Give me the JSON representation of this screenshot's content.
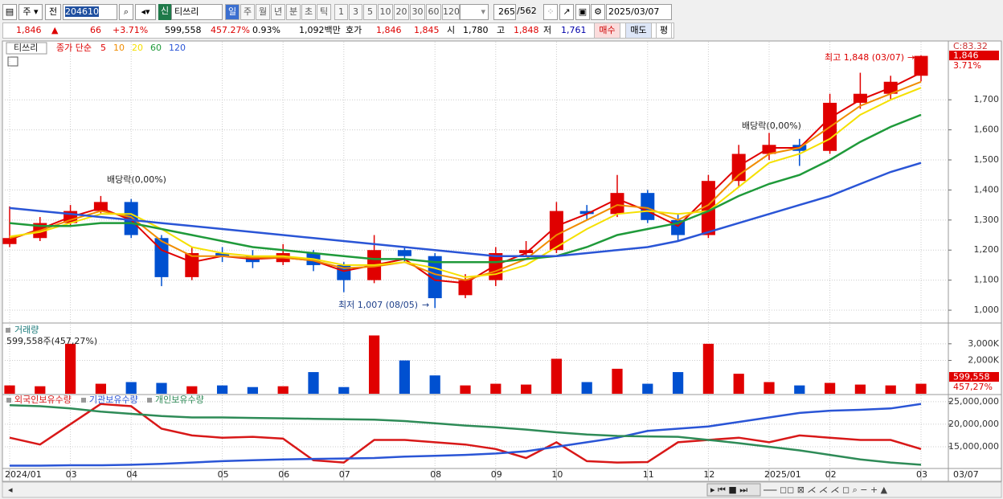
{
  "toolbar": {
    "period": "주",
    "prev": "전",
    "code": "204610",
    "credit": "신",
    "name": "티쓰리",
    "intervals": [
      "일",
      "주",
      "월",
      "년",
      "분",
      "초",
      "틱"
    ],
    "counts": [
      "1",
      "3",
      "5",
      "10",
      "20",
      "30",
      "60",
      "120"
    ],
    "bars": "265",
    "total": "/562",
    "date": "2025/03/07"
  },
  "quote": {
    "price": "1,846",
    "arrow": "▲",
    "change": "66",
    "rate": "+3.71%",
    "volume": "599,558",
    "volume_rate": "457.27%",
    "turnover": "0.93%",
    "amount": "1,092백만",
    "ask_label": "호가",
    "ask": "1,846",
    "bid": "1,845",
    "open_label": "시",
    "open": "1,780",
    "high_label": "고",
    "high": "1,848",
    "low_label": "저",
    "low": "1,761",
    "buy": "매수",
    "sell": "매도",
    "avg": "평"
  },
  "chart_data": [
    {
      "type": "candlestick",
      "legend_title": "종가 단순",
      "categories": [
        "2024/01",
        null,
        "03",
        null,
        "04",
        null,
        null,
        "05",
        null,
        "06",
        null,
        "07",
        null,
        null,
        "08",
        null,
        "09",
        null,
        "10",
        null,
        null,
        "11",
        null,
        "12",
        null,
        "2025/01",
        null,
        "02",
        null,
        null,
        "03"
      ],
      "open": [
        1220,
        1240,
        1290,
        1330,
        1360,
        1240,
        1110,
        1190,
        1180,
        1160,
        1190,
        1150,
        1100,
        1200,
        1180,
        1050,
        1100,
        1190,
        1200,
        1330,
        1320,
        1390,
        1300,
        1250,
        1430,
        1520,
        1550,
        1530,
        1690,
        1720,
        1780
      ],
      "high": [
        1345,
        1310,
        1350,
        1380,
        1370,
        1250,
        1210,
        1210,
        1200,
        1220,
        1200,
        1160,
        1250,
        1210,
        1190,
        1120,
        1210,
        1230,
        1360,
        1350,
        1450,
        1400,
        1320,
        1450,
        1550,
        1590,
        1570,
        1720,
        1790,
        1780,
        1848
      ],
      "low": [
        1210,
        1230,
        1280,
        1320,
        1240,
        1080,
        1100,
        1160,
        1140,
        1150,
        1130,
        1060,
        1090,
        1160,
        1007,
        1040,
        1080,
        1180,
        1190,
        1300,
        1310,
        1290,
        1230,
        1240,
        1410,
        1500,
        1480,
        1520,
        1670,
        1700,
        1761
      ],
      "close": [
        1240,
        1290,
        1330,
        1360,
        1250,
        1110,
        1190,
        1180,
        1160,
        1190,
        1150,
        1100,
        1200,
        1180,
        1040,
        1100,
        1190,
        1200,
        1330,
        1320,
        1390,
        1300,
        1250,
        1430,
        1520,
        1550,
        1530,
        1690,
        1720,
        1760,
        1846
      ],
      "up_color": "#e00000",
      "down_color": "#0050d0",
      "series": [
        {
          "name": "5",
          "color": "#e00000",
          "values": [
            1235,
            1270,
            1310,
            1340,
            1300,
            1200,
            1160,
            1180,
            1170,
            1175,
            1165,
            1130,
            1150,
            1170,
            1100,
            1090,
            1150,
            1190,
            1280,
            1320,
            1370,
            1330,
            1280,
            1380,
            1480,
            1540,
            1540,
            1640,
            1700,
            1740,
            1790
          ]
        },
        {
          "name": "10",
          "color": "#f08c00",
          "values": [
            1240,
            1265,
            1300,
            1330,
            1310,
            1230,
            1180,
            1180,
            1175,
            1175,
            1165,
            1140,
            1145,
            1160,
            1120,
            1100,
            1130,
            1170,
            1250,
            1300,
            1350,
            1340,
            1300,
            1350,
            1450,
            1520,
            1540,
            1610,
            1680,
            1720,
            1760
          ]
        },
        {
          "name": "20",
          "color": "#f5e000",
          "values": [
            1245,
            1260,
            1290,
            1320,
            1320,
            1270,
            1210,
            1190,
            1180,
            1180,
            1170,
            1150,
            1150,
            1160,
            1140,
            1110,
            1120,
            1150,
            1210,
            1270,
            1320,
            1330,
            1320,
            1330,
            1410,
            1490,
            1520,
            1570,
            1650,
            1700,
            1740
          ]
        },
        {
          "name": "60",
          "color": "#1f9a3a",
          "values": [
            1290,
            1280,
            1280,
            1290,
            1290,
            1270,
            1250,
            1230,
            1210,
            1200,
            1190,
            1180,
            1170,
            1170,
            1160,
            1160,
            1160,
            1170,
            1180,
            1210,
            1250,
            1270,
            1290,
            1330,
            1380,
            1420,
            1450,
            1500,
            1560,
            1610,
            1650
          ]
        },
        {
          "name": "120",
          "color": "#2a55d6",
          "values": [
            1340,
            1330,
            1320,
            1310,
            1300,
            1290,
            1280,
            1270,
            1260,
            1250,
            1240,
            1230,
            1220,
            1210,
            1200,
            1190,
            1180,
            1180,
            1180,
            1190,
            1200,
            1210,
            1230,
            1260,
            1290,
            1320,
            1350,
            1380,
            1420,
            1460,
            1490
          ]
        }
      ],
      "ylim": [
        960,
        1893
      ],
      "yticks": [
        {
          "value": 1000,
          "label": "1,000"
        },
        {
          "value": 1100,
          "label": "1,100"
        },
        {
          "value": 1200,
          "label": "1,200"
        },
        {
          "value": 1300,
          "label": "1,300"
        },
        {
          "value": 1400,
          "label": "1,400"
        },
        {
          "value": 1500,
          "label": "1,500"
        },
        {
          "value": 1600,
          "label": "1,600"
        },
        {
          "value": 1700,
          "label": "1,700"
        }
      ],
      "grid": true,
      "annotations": [
        "최고 1,848 (03/07)",
        "최저 1,007 (08/05)",
        "배당락(0,00%)",
        "배당락(0,00%)"
      ],
      "c_label": "C:83.32",
      "last_change_label": "3.71%"
    },
    {
      "type": "bar",
      "title": "거래량",
      "subtitle": "599,558주(457,27%)",
      "values": [
        500000,
        450000,
        3000000,
        600000,
        700000,
        650000,
        450000,
        500000,
        400000,
        450000,
        1300000,
        400000,
        3500000,
        2000000,
        1100000,
        500000,
        600000,
        550000,
        2100000,
        700000,
        1500000,
        600000,
        1300000,
        3000000,
        1200000,
        700000,
        500000,
        650000,
        550000,
        500000,
        599558
      ],
      "ylim": [
        0,
        4150000
      ],
      "yticks": [
        {
          "value": 2000000,
          "label": "2,000K"
        },
        {
          "value": 3000000,
          "label": "3,000K"
        }
      ],
      "grid": true,
      "last_pct": "457,27%"
    },
    {
      "type": "line",
      "series": [
        {
          "name": "외국인보유수량",
          "color": "#d81818",
          "values": [
            17000000,
            15500000,
            20000000,
            24500000,
            24000000,
            19000000,
            17500000,
            17000000,
            17200000,
            16800000,
            12000000,
            11500000,
            16500000,
            16500000,
            16000000,
            15500000,
            14500000,
            12500000,
            16000000,
            11800000,
            11500000,
            11600000,
            16000000,
            16500000,
            17000000,
            16000000,
            17500000,
            17000000,
            16500000,
            16500000,
            14500000
          ]
        },
        {
          "name": "기관보유수량",
          "color": "#2a55d6",
          "values": [
            10800000,
            10800000,
            10900000,
            10900000,
            11000000,
            11200000,
            11500000,
            11800000,
            12000000,
            12200000,
            12300000,
            12400000,
            12500000,
            12800000,
            13000000,
            13200000,
            13500000,
            14000000,
            15000000,
            16000000,
            17000000,
            18500000,
            19000000,
            19500000,
            20500000,
            21500000,
            22500000,
            23000000,
            23200000,
            23500000,
            24500000
          ]
        },
        {
          "name": "개인보유수량",
          "color": "#2e8b57",
          "values": [
            24200000,
            24000000,
            23500000,
            22800000,
            22300000,
            21800000,
            21500000,
            21500000,
            21400000,
            21300000,
            21200000,
            21100000,
            21000000,
            20700000,
            20200000,
            19700000,
            19300000,
            18800000,
            18200000,
            17700000,
            17400000,
            17300000,
            17200000,
            16500000,
            15800000,
            15000000,
            14200000,
            13200000,
            12200000,
            11500000,
            11000000
          ]
        }
      ],
      "ylim": [
        10360000,
        26400000
      ],
      "yticks": [
        {
          "value": 15000000,
          "label": "15,000,000"
        },
        {
          "value": 20000000,
          "label": "20,000,000"
        },
        {
          "value": 25000000,
          "label": "25,000,000"
        }
      ],
      "grid": true
    }
  ],
  "last_date": "03/07"
}
